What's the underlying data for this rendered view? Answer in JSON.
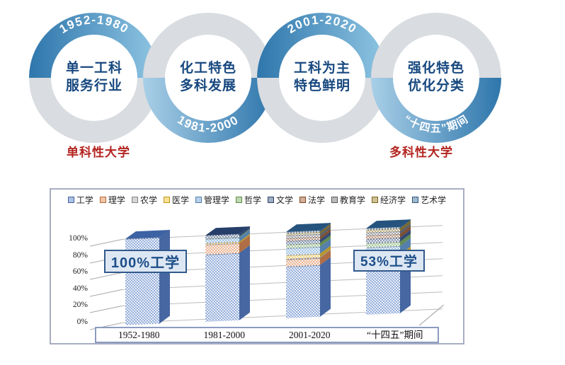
{
  "rings": [
    {
      "period": "1952-1980",
      "line1": "单一工科",
      "line2": "服务行业",
      "period_position": "top"
    },
    {
      "period": "1981-2000",
      "line1": "化工特色",
      "line2": "多科发展",
      "period_position": "bottom"
    },
    {
      "period": "2001-2020",
      "line1": "工科为主",
      "line2": "特色鲜明",
      "period_position": "top"
    },
    {
      "period": "“十四五”期间",
      "line1": "强化特色",
      "line2": "优化分类",
      "period_position": "bottom"
    }
  ],
  "labels": {
    "left": "单科性大学",
    "right": "多科性大学"
  },
  "colors": {
    "ring_blue_dark": "#2e76ac",
    "ring_blue_light": "#90c6e3",
    "ring_gray": "#d9dce0",
    "ring_text": "#17487f",
    "red_label": "#b3241f",
    "callout_bg": "#dde7f3",
    "callout_border": "#31598c",
    "callout_text": "#1d4e89"
  },
  "chart_data": {
    "type": "bar",
    "subtype": "3d-100%-stacked-column",
    "categories": [
      "1952-1980",
      "1981-2000",
      "2001-2020",
      "“十四五”期间"
    ],
    "series": [
      {
        "name": "工学",
        "color": "#4472C4",
        "values": [
          100,
          78,
          60,
          53
        ]
      },
      {
        "name": "理学",
        "color": "#ED7D31",
        "values": [
          0,
          11,
          8,
          8
        ]
      },
      {
        "name": "农学",
        "color": "#A5A5A5",
        "values": [
          0,
          0,
          1,
          2
        ]
      },
      {
        "name": "医学",
        "color": "#FFC000",
        "values": [
          0,
          2,
          4,
          5
        ]
      },
      {
        "name": "管理学",
        "color": "#5B9BD5",
        "values": [
          0,
          5,
          8,
          10
        ]
      },
      {
        "name": "哲学",
        "color": "#70AD47",
        "values": [
          0,
          1,
          4,
          5
        ]
      },
      {
        "name": "文学",
        "color": "#264478",
        "values": [
          0,
          3,
          4,
          5
        ]
      },
      {
        "name": "法学",
        "color": "#9E480E",
        "values": [
          0,
          0,
          4,
          4
        ]
      },
      {
        "name": "教育学",
        "color": "#636363",
        "values": [
          0,
          0,
          3,
          3
        ]
      },
      {
        "name": "经济学",
        "color": "#997300",
        "values": [
          0,
          0,
          2,
          3
        ]
      },
      {
        "name": "艺术学",
        "color": "#255E91",
        "values": [
          0,
          0,
          2,
          2
        ]
      }
    ],
    "y_ticks": [
      "0%",
      "20%",
      "40%",
      "60%",
      "80%",
      "100%"
    ],
    "ylim": [
      0,
      100
    ],
    "grid": true,
    "legend_position": "top",
    "annotations": [
      {
        "text": "100%工学",
        "category_index": 0
      },
      {
        "text": "53%工学",
        "category_index": 3
      }
    ]
  }
}
